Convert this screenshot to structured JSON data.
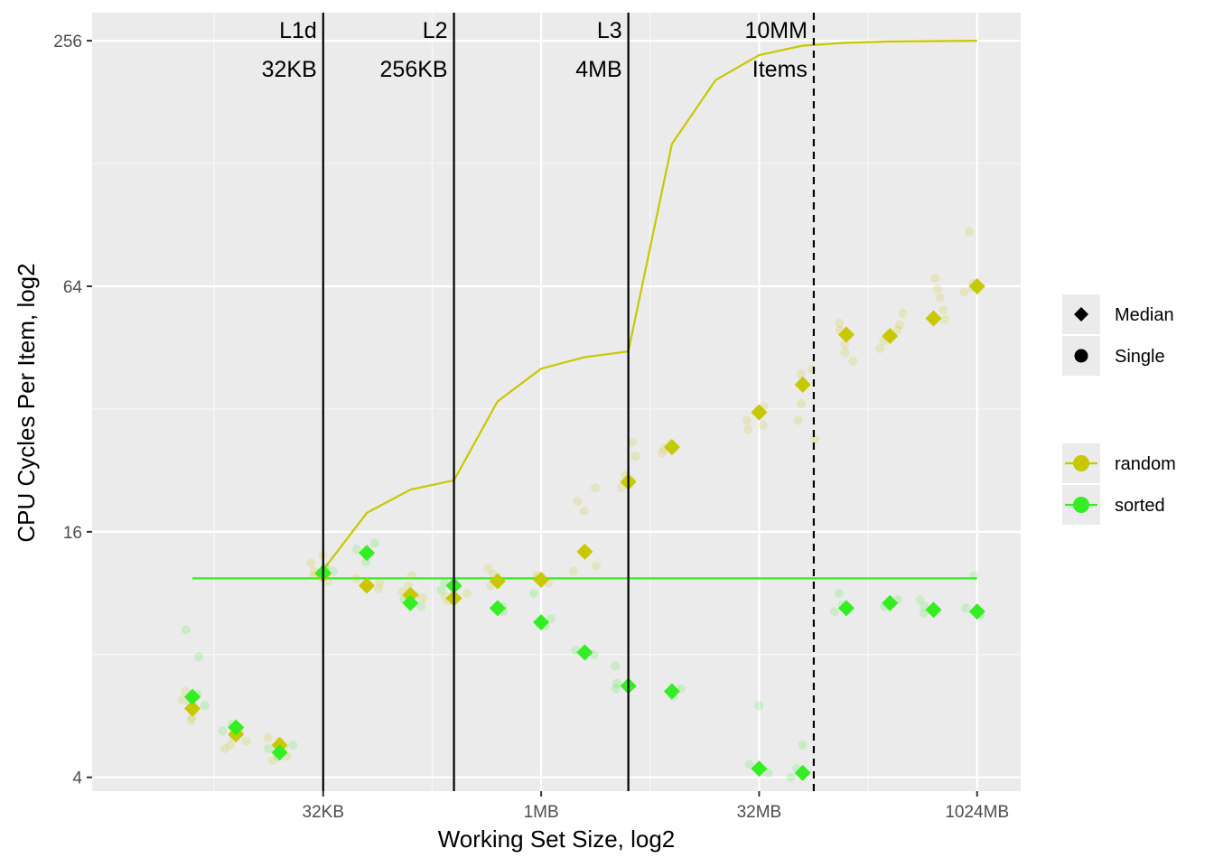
{
  "chart_data": {
    "type": "scatter",
    "xlabel": "Working Set Size, log2",
    "ylabel": "CPU Cycles Per Item, log2",
    "x_scale": "log2",
    "y_scale": "log2",
    "xlim_log2_kb": [
      -0.3,
      21.0
    ],
    "ylim": [
      3.7,
      300
    ],
    "x_ticks": [
      {
        "label": "32KB",
        "kb": 32
      },
      {
        "label": "1MB",
        "kb": 1024
      },
      {
        "label": "32MB",
        "kb": 32768
      },
      {
        "label": "1024MB",
        "kb": 1048576
      }
    ],
    "y_ticks": [
      {
        "label": "4",
        "value": 4
      },
      {
        "label": "16",
        "value": 16
      },
      {
        "label": "64",
        "value": 64
      },
      {
        "label": "256",
        "value": 256
      }
    ],
    "grid": true,
    "legend_position": "right",
    "legend_shape": {
      "items": [
        {
          "label": "Median",
          "shape": "diamond"
        },
        {
          "label": "Single",
          "shape": "circle"
        }
      ]
    },
    "legend_color": {
      "items": [
        {
          "label": "random",
          "color": "#c8c800"
        },
        {
          "label": "sorted",
          "color": "#33ee22"
        }
      ]
    },
    "vlines": [
      {
        "kb": 32,
        "style": "solid",
        "label1": "L1d",
        "label2": "32KB"
      },
      {
        "kb": 256,
        "style": "solid",
        "label1": "L2",
        "label2": "256KB"
      },
      {
        "kb": 4096,
        "style": "solid",
        "label1": "L3",
        "label2": "4MB"
      },
      {
        "kb": 78125,
        "style": "dashed",
        "label1": "10MM",
        "label2": "Items"
      }
    ],
    "series": [
      {
        "name": "random",
        "color": "#c8c800",
        "line_x_kb": [
          32,
          64,
          128,
          256,
          512,
          1024,
          2048,
          4096,
          8192,
          16384,
          32768,
          65536,
          131072,
          262144,
          524288,
          1048576
        ],
        "line_y": [
          12.9,
          17.8,
          20.3,
          21.4,
          33.4,
          40.2,
          42.9,
          44.3,
          143,
          205,
          236,
          249,
          253,
          255,
          255.5,
          256
        ],
        "median_x_kb": [
          4,
          8,
          16,
          32,
          64,
          128,
          256,
          512,
          1024,
          2048,
          4096,
          8192,
          32768,
          65536,
          131072,
          262144,
          524288,
          1048576
        ],
        "median_y": [
          5.9,
          5.1,
          4.8,
          12.6,
          11.8,
          11.2,
          11.0,
          12.1,
          12.2,
          14.3,
          21.2,
          25.8,
          31.4,
          36.7,
          48.7,
          48.3,
          53.4,
          64.0
        ],
        "single_points": [
          [
            4,
            5.6
          ],
          [
            4,
            5.8
          ],
          [
            4,
            6.2
          ],
          [
            4,
            6.5
          ],
          [
            4,
            5.5
          ],
          [
            4,
            6.0
          ],
          [
            8,
            4.7
          ],
          [
            8,
            4.9
          ],
          [
            8,
            5.2
          ],
          [
            8,
            5.0
          ],
          [
            8,
            4.8
          ],
          [
            16,
            4.5
          ],
          [
            16,
            4.7
          ],
          [
            16,
            5.0
          ],
          [
            16,
            4.9
          ],
          [
            16,
            4.4
          ],
          [
            32,
            12.1
          ],
          [
            32,
            12.5
          ],
          [
            32,
            13.0
          ],
          [
            32,
            14.0
          ],
          [
            32,
            12.8
          ],
          [
            32,
            13.4
          ],
          [
            64,
            11.6
          ],
          [
            64,
            12.0
          ],
          [
            64,
            12.3
          ],
          [
            64,
            11.9
          ],
          [
            128,
            11.0
          ],
          [
            128,
            11.4
          ],
          [
            128,
            11.8
          ],
          [
            128,
            12.5
          ],
          [
            128,
            11.2
          ],
          [
            256,
            10.8
          ],
          [
            256,
            11.1
          ],
          [
            256,
            11.3
          ],
          [
            256,
            11.0
          ],
          [
            512,
            11.8
          ],
          [
            512,
            12.2
          ],
          [
            512,
            12.6
          ],
          [
            512,
            13.0
          ],
          [
            1024,
            12.0
          ],
          [
            1024,
            12.3
          ],
          [
            1024,
            12.5
          ],
          [
            2048,
            12.8
          ],
          [
            2048,
            13.2
          ],
          [
            2048,
            19.0
          ],
          [
            2048,
            20.5
          ],
          [
            2048,
            18.0
          ],
          [
            4096,
            20.5
          ],
          [
            4096,
            21.5
          ],
          [
            4096,
            22.0
          ],
          [
            4096,
            24.5
          ],
          [
            4096,
            26.5
          ],
          [
            8192,
            25.0
          ],
          [
            8192,
            25.6
          ],
          [
            8192,
            26.3
          ],
          [
            32768,
            28.5
          ],
          [
            32768,
            30.0
          ],
          [
            32768,
            31.5
          ],
          [
            32768,
            32.5
          ],
          [
            32768,
            29.2
          ],
          [
            65536,
            27.0
          ],
          [
            65536,
            30.0
          ],
          [
            65536,
            33.0
          ],
          [
            65536,
            37.5
          ],
          [
            65536,
            39.0
          ],
          [
            65536,
            40.0
          ],
          [
            131072,
            44.0
          ],
          [
            131072,
            46.0
          ],
          [
            131072,
            50.0
          ],
          [
            131072,
            52.0
          ],
          [
            131072,
            42.0
          ],
          [
            262144,
            45.0
          ],
          [
            262144,
            47.0
          ],
          [
            262144,
            50.0
          ],
          [
            262144,
            51.5
          ],
          [
            262144,
            55.0
          ],
          [
            524288,
            53.0
          ],
          [
            524288,
            56.0
          ],
          [
            524288,
            60.0
          ],
          [
            524288,
            63.0
          ],
          [
            524288,
            67.0
          ],
          [
            1048576,
            62.0
          ],
          [
            1048576,
            63.5
          ],
          [
            1048576,
            65.0
          ],
          [
            1048576,
            87.0
          ]
        ]
      },
      {
        "name": "sorted",
        "color": "#33ee22",
        "line_x_kb": [
          4,
          1048576
        ],
        "line_y": [
          12.3,
          12.3
        ],
        "median_x_kb": [
          4,
          8,
          16,
          32,
          64,
          128,
          256,
          512,
          1024,
          2048,
          4096,
          8192,
          32768,
          65536,
          131072,
          262144,
          524288,
          1048576
        ],
        "median_y": [
          6.3,
          5.3,
          4.6,
          12.7,
          14.2,
          10.7,
          11.8,
          10.4,
          9.6,
          8.1,
          6.7,
          6.5,
          4.2,
          4.1,
          10.4,
          10.7,
          10.3,
          10.2
        ],
        "single_points": [
          [
            4,
            6.1
          ],
          [
            4,
            6.4
          ],
          [
            4,
            7.9
          ],
          [
            4,
            9.2
          ],
          [
            4,
            6.0
          ],
          [
            8,
            5.2
          ],
          [
            8,
            5.4
          ],
          [
            8,
            5.1
          ],
          [
            16,
            4.5
          ],
          [
            16,
            4.7
          ],
          [
            16,
            4.8
          ],
          [
            32,
            12.4
          ],
          [
            32,
            12.8
          ],
          [
            32,
            13.1
          ],
          [
            64,
            13.5
          ],
          [
            64,
            14.5
          ],
          [
            64,
            15.0
          ],
          [
            128,
            10.5
          ],
          [
            128,
            10.9
          ],
          [
            256,
            11.5
          ],
          [
            256,
            12.0
          ],
          [
            512,
            10.2
          ],
          [
            512,
            10.5
          ],
          [
            1024,
            9.4
          ],
          [
            1024,
            9.8
          ],
          [
            1024,
            11.3
          ],
          [
            2048,
            8.0
          ],
          [
            2048,
            8.2
          ],
          [
            4096,
            6.6
          ],
          [
            4096,
            6.8
          ],
          [
            4096,
            7.5
          ],
          [
            8192,
            6.3
          ],
          [
            8192,
            6.6
          ],
          [
            32768,
            4.1
          ],
          [
            32768,
            4.3
          ],
          [
            32768,
            6.0
          ],
          [
            65536,
            4.0
          ],
          [
            65536,
            4.2
          ],
          [
            65536,
            4.8
          ],
          [
            131072,
            10.2
          ],
          [
            131072,
            10.6
          ],
          [
            131072,
            11.3
          ],
          [
            262144,
            10.5
          ],
          [
            262144,
            10.9
          ],
          [
            524288,
            10.1
          ],
          [
            524288,
            10.5
          ],
          [
            524288,
            10.9
          ],
          [
            1048576,
            10.0
          ],
          [
            1048576,
            10.4
          ],
          [
            1048576,
            12.5
          ]
        ]
      }
    ]
  }
}
